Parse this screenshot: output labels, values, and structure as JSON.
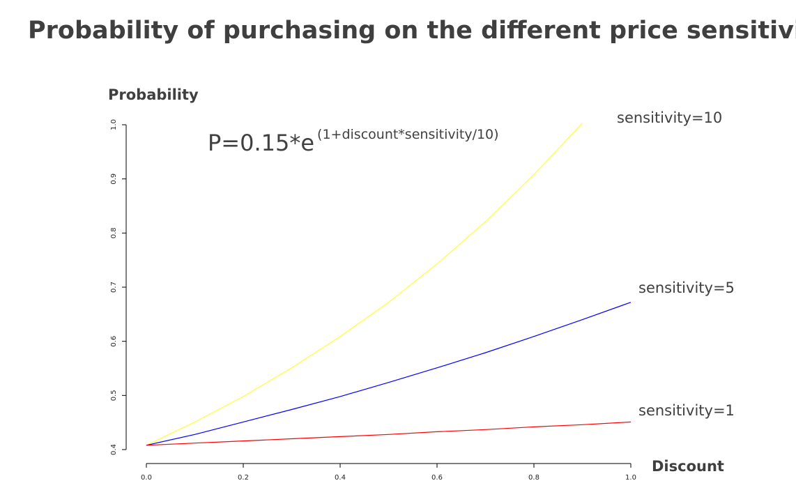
{
  "page": {
    "title": "Probability of purchasing on the different price sensitivity"
  },
  "chart_data": {
    "type": "line",
    "title": "",
    "xlabel": "Discount",
    "ylabel": "Probability",
    "xlim": [
      0,
      1
    ],
    "ylim": [
      0.4,
      1.02
    ],
    "x_ticks": [
      "0.0",
      "0.2",
      "0.4",
      "0.6",
      "0.8",
      "1.0"
    ],
    "y_ticks": [
      "0.4",
      "0.5",
      "0.6",
      "0.7",
      "0.8",
      "0.9",
      "1.0"
    ],
    "grid": false,
    "formula": {
      "base": "P=0.15*e",
      "exponent": "(1+discount*sensitivity/10)"
    },
    "x": [
      0,
      0.1,
      0.2,
      0.3,
      0.4,
      0.5,
      0.6,
      0.7,
      0.8,
      0.9,
      1.0
    ],
    "series": [
      {
        "name": "sensitivity=10",
        "color": "#ffff33",
        "values": [
          0.408,
          0.451,
          0.498,
          0.551,
          0.609,
          0.672,
          0.743,
          0.821,
          0.908,
          1.003,
          null
        ]
      },
      {
        "name": "sensitivity=5",
        "color": "#0000ff",
        "values": [
          0.408,
          0.428,
          0.451,
          0.474,
          0.498,
          0.524,
          0.551,
          0.579,
          0.609,
          0.64,
          0.672
        ]
      },
      {
        "name": "sensitivity=1",
        "color": "#ff0000",
        "values": [
          0.408,
          0.412,
          0.416,
          0.42,
          0.424,
          0.428,
          0.433,
          0.437,
          0.442,
          0.446,
          0.451
        ]
      }
    ]
  }
}
